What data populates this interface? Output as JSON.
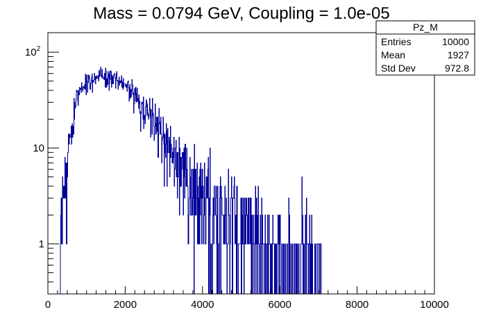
{
  "chart_data": {
    "type": "histogram",
    "title": "Mass = 0.0794 GeV, Coupling = 1.0e-05",
    "xlabel": "",
    "ylabel": "",
    "xlim": [
      0,
      10000
    ],
    "ylim": [
      0.3,
      160
    ],
    "yscale": "log",
    "grid": false,
    "line_color": "#000099",
    "x_ticks": [
      {
        "value": 0,
        "label": "0"
      },
      {
        "value": 2000,
        "label": "2000"
      },
      {
        "value": 4000,
        "label": "4000"
      },
      {
        "value": 6000,
        "label": "6000"
      },
      {
        "value": 8000,
        "label": "8000"
      },
      {
        "value": 10000,
        "label": "10000"
      }
    ],
    "y_ticks": [
      {
        "value": 1,
        "label": "1"
      },
      {
        "value": 10,
        "label": "10"
      },
      {
        "value": 100,
        "base": "10",
        "exp": "2"
      }
    ],
    "bins": 1000,
    "envelope": {
      "x": [
        300,
        400,
        500,
        600,
        700,
        800,
        900,
        1000,
        1200,
        1400,
        1600,
        1800,
        2000,
        2200,
        2400,
        2600,
        2800,
        3000,
        3200,
        3400,
        3600,
        3800,
        4000,
        4200,
        4500,
        4800,
        5200,
        5600,
        6000,
        6500,
        7000,
        7100
      ],
      "y": [
        0,
        3,
        7,
        14,
        25,
        35,
        43,
        50,
        55,
        57,
        55,
        50,
        44,
        37,
        30,
        24,
        18,
        13,
        10,
        7.5,
        5.5,
        4,
        3,
        2.5,
        2,
        1.6,
        1.3,
        1.1,
        0.9,
        0.7,
        0.5,
        0
      ]
    },
    "stats": {
      "name": "Pz_M",
      "rows": [
        {
          "label": "Entries",
          "value": "10000"
        },
        {
          "label": "Mean",
          "value": "1927"
        },
        {
          "label": "Std Dev",
          "value": "972.8"
        }
      ]
    }
  }
}
